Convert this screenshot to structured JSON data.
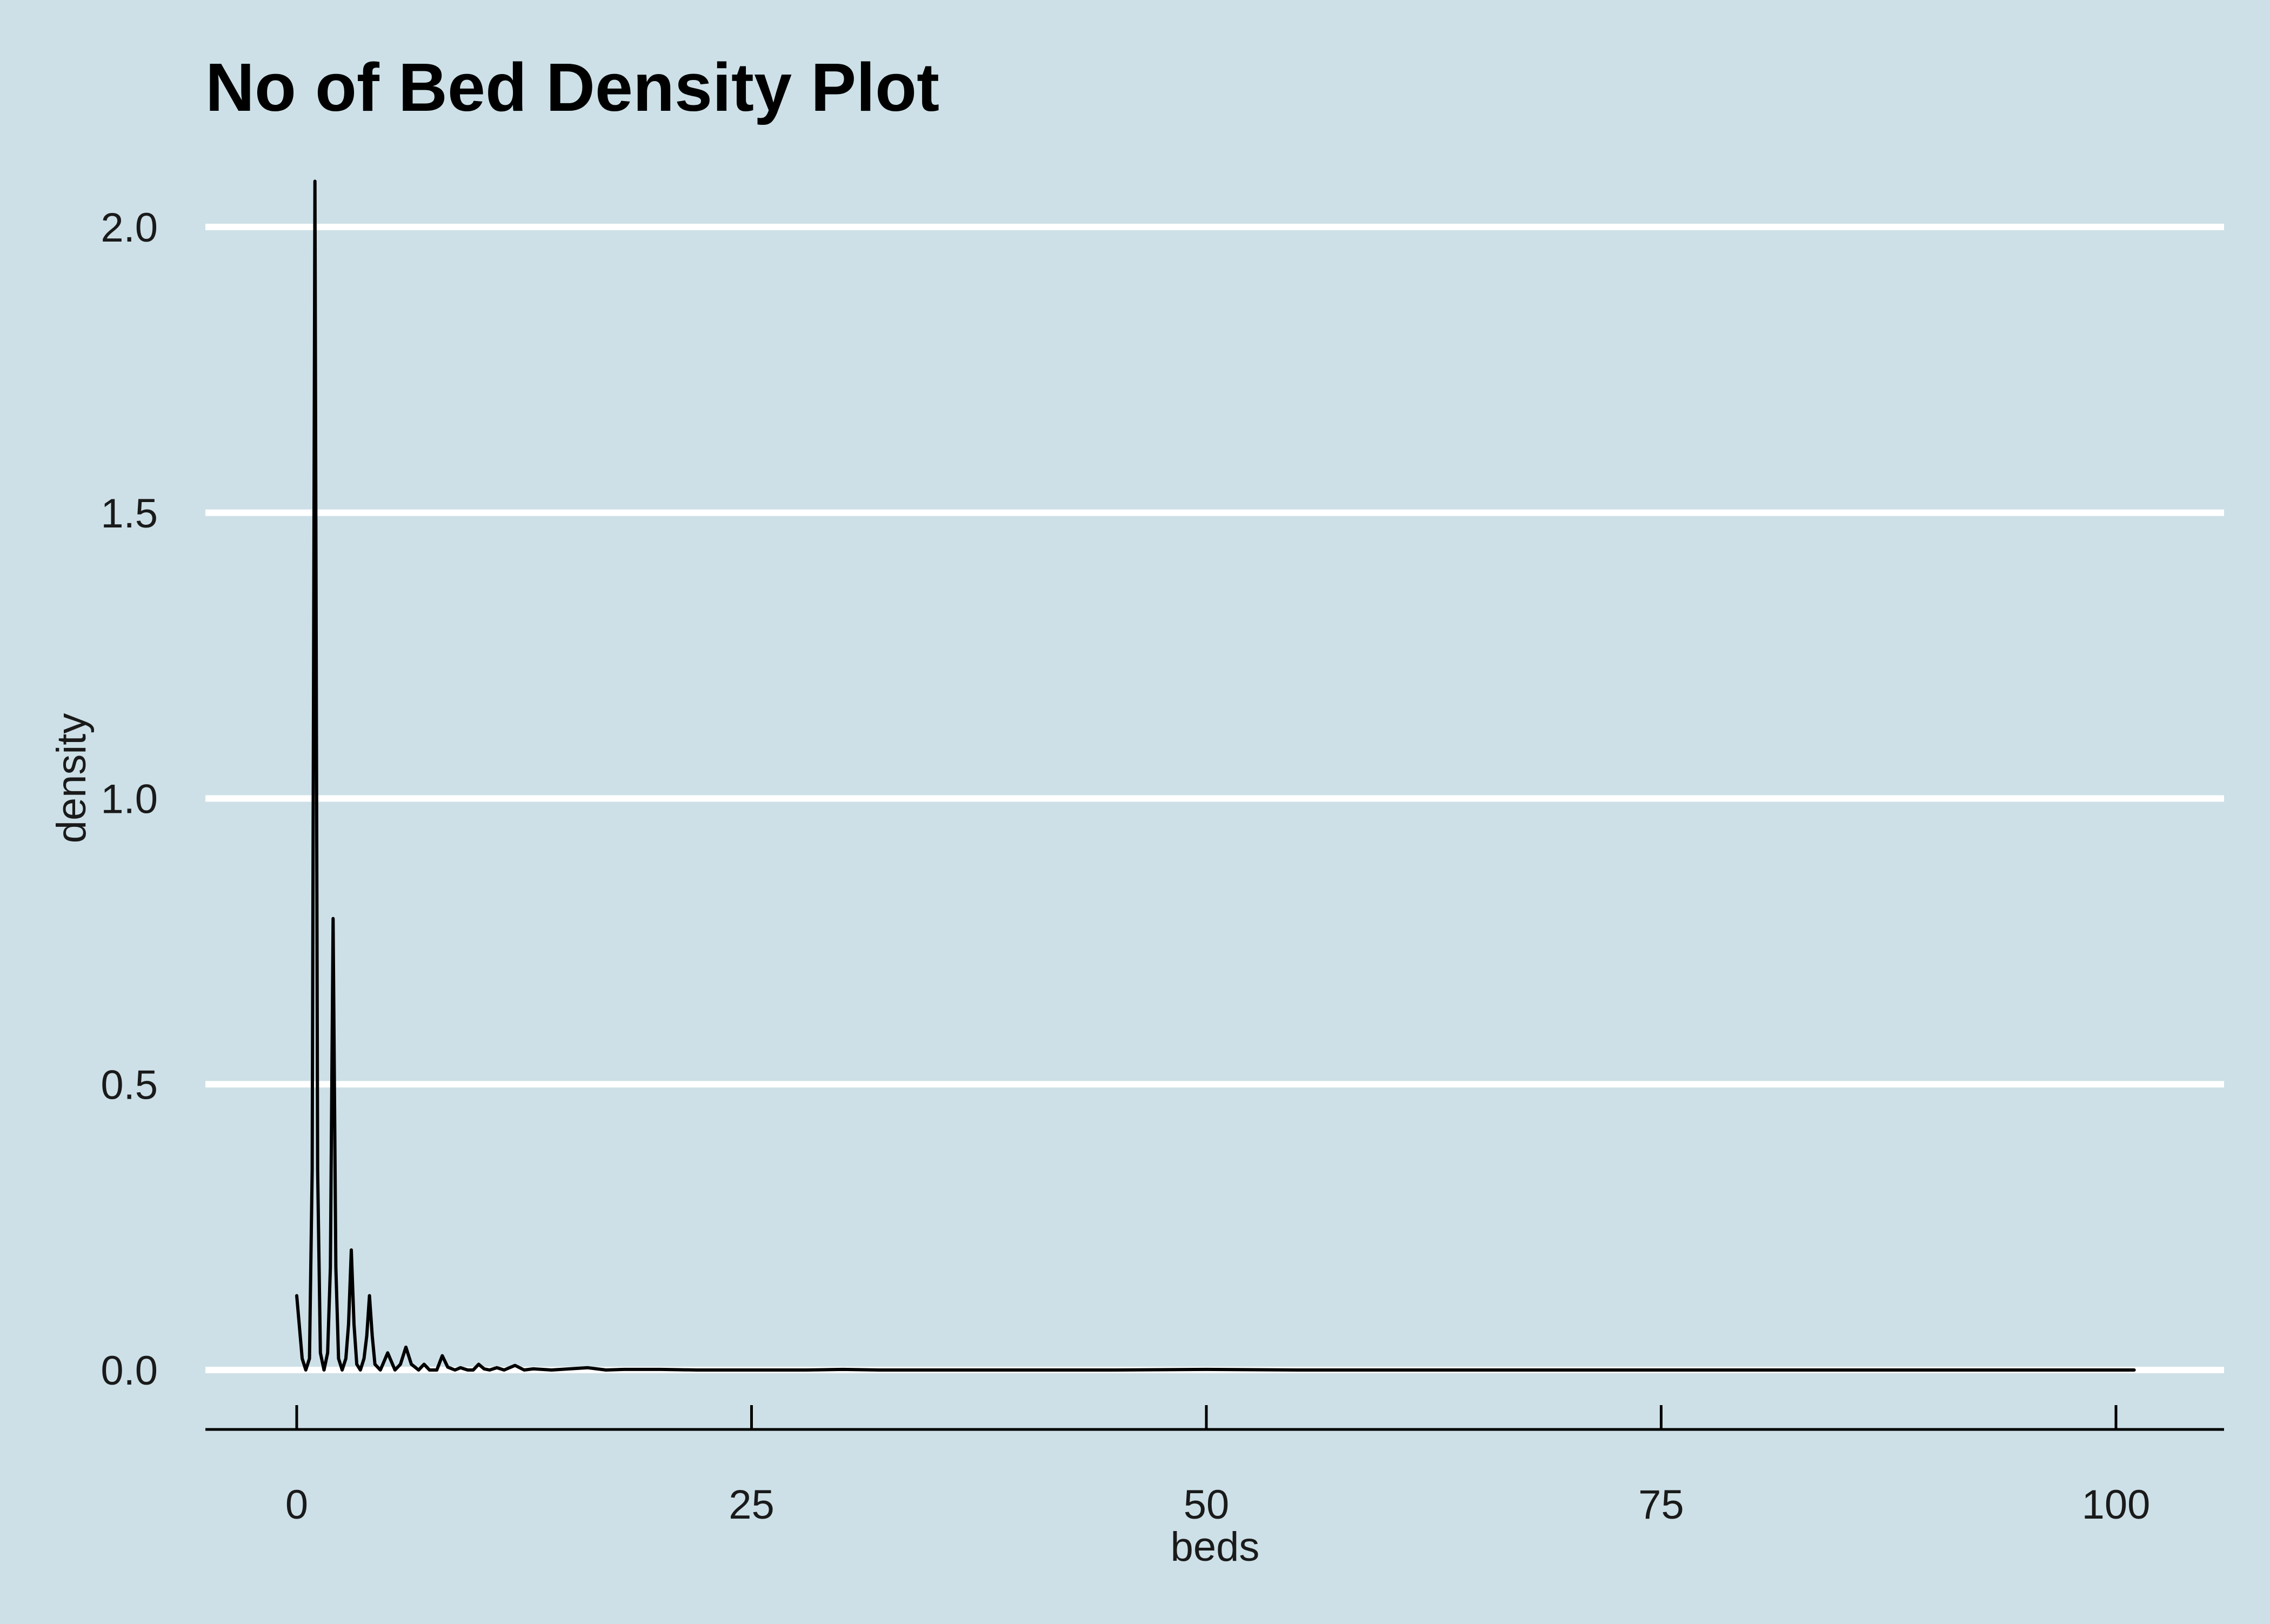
{
  "chart_data": {
    "type": "line",
    "title": "No of Bed Density Plot",
    "xlabel": "beds",
    "ylabel": "density",
    "xlim": [
      -5,
      106
    ],
    "ylim": [
      -0.1,
      2.2
    ],
    "x_ticks": [
      0,
      25,
      50,
      75,
      100
    ],
    "x_tick_labels": [
      "0",
      "25",
      "50",
      "75",
      "100"
    ],
    "y_ticks": [
      0.0,
      0.5,
      1.0,
      1.5,
      2.0
    ],
    "y_tick_labels": [
      "0.0",
      "0.5",
      "1.0",
      "1.5",
      "2.0"
    ],
    "grid": "horizontal-major",
    "legend": "none",
    "series": [
      {
        "x": [
          0,
          0.3,
          0.5,
          0.7,
          0.85,
          1,
          1.15,
          1.3,
          1.5,
          1.7,
          1.85,
          2,
          2.15,
          2.3,
          2.5,
          2.7,
          2.85,
          3,
          3.15,
          3.3,
          3.5,
          3.7,
          3.85,
          4,
          4.15,
          4.3,
          4.6,
          5,
          5.4,
          5.7,
          6,
          6.3,
          6.7,
          7,
          7.3,
          7.7,
          8,
          8.3,
          8.7,
          9,
          9.4,
          9.7,
          10,
          10.3,
          10.6,
          11,
          11.4,
          12,
          12.5,
          13,
          14,
          15,
          16,
          17,
          18,
          20,
          22,
          25,
          28,
          30,
          32,
          35,
          40,
          45,
          50,
          55,
          60,
          70,
          80,
          90,
          101
        ],
        "y": [
          0.13,
          0.02,
          0.0,
          0.02,
          0.35,
          2.08,
          0.35,
          0.03,
          0.0,
          0.03,
          0.18,
          0.79,
          0.18,
          0.02,
          0.0,
          0.02,
          0.08,
          0.21,
          0.08,
          0.01,
          0.0,
          0.02,
          0.06,
          0.13,
          0.06,
          0.01,
          0.0,
          0.03,
          0.0,
          0.01,
          0.04,
          0.01,
          0.0,
          0.01,
          0.0,
          0.0,
          0.025,
          0.005,
          0.0,
          0.004,
          0.0,
          0.0,
          0.01,
          0.002,
          0.0,
          0.004,
          0.0,
          0.008,
          0.0,
          0.002,
          0.0,
          0.002,
          0.004,
          0.0,
          0.001,
          0.001,
          0.0,
          0.0,
          0.0,
          0.001,
          0.0,
          0.0,
          0.0,
          0.0,
          0.001,
          0.0,
          0.0,
          0.0,
          0.0,
          0.0,
          0.0
        ]
      }
    ]
  },
  "colors": {
    "background": "#cde0e7",
    "gridline": "#ffffff",
    "line": "#000000",
    "axis": "#000000"
  }
}
